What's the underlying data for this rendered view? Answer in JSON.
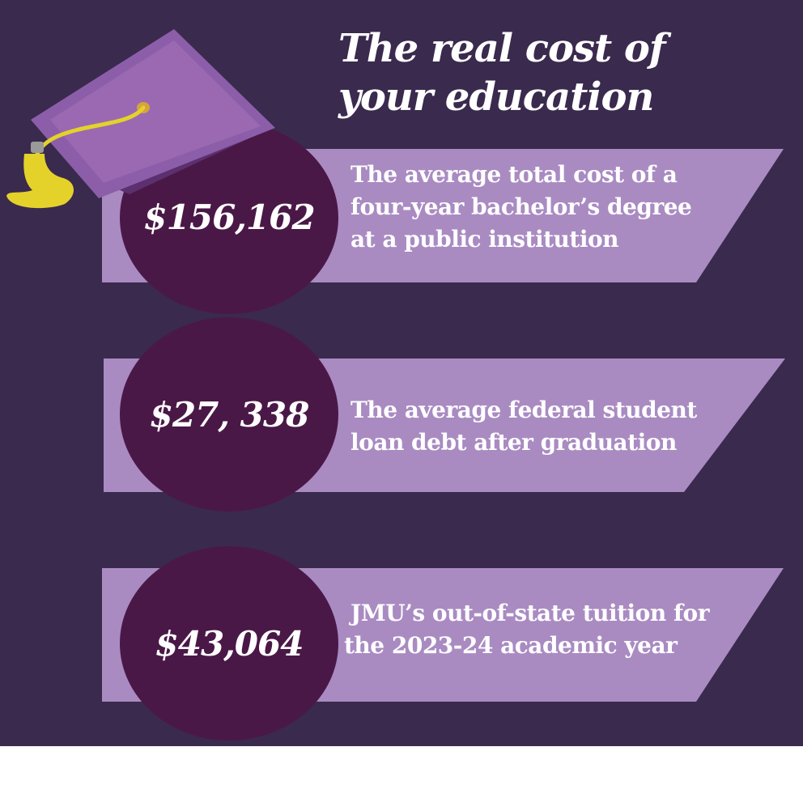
{
  "colors": {
    "background": "#3a2a4e",
    "banner": "#a98bc2",
    "circle": "#4a1847",
    "cap": "#8c5ea9",
    "tassel": "#e4d22a",
    "text": "#ffffff"
  },
  "title": {
    "line1": "The real cost of",
    "line2": "your education"
  },
  "stats": [
    {
      "amount": "$156,162",
      "line1": "The average total cost of a",
      "line2": "four-year bachelor’s degree",
      "line3": "at a public institution"
    },
    {
      "amount": "$27, 338",
      "line1": "The average federal student",
      "line2": "loan debt after graduation"
    },
    {
      "amount": "$43,064",
      "line1": "JMU’s out-of-state tuition for",
      "line2": "the 2023-24 academic year"
    }
  ],
  "icons": {
    "cap": "graduation-cap-icon"
  }
}
